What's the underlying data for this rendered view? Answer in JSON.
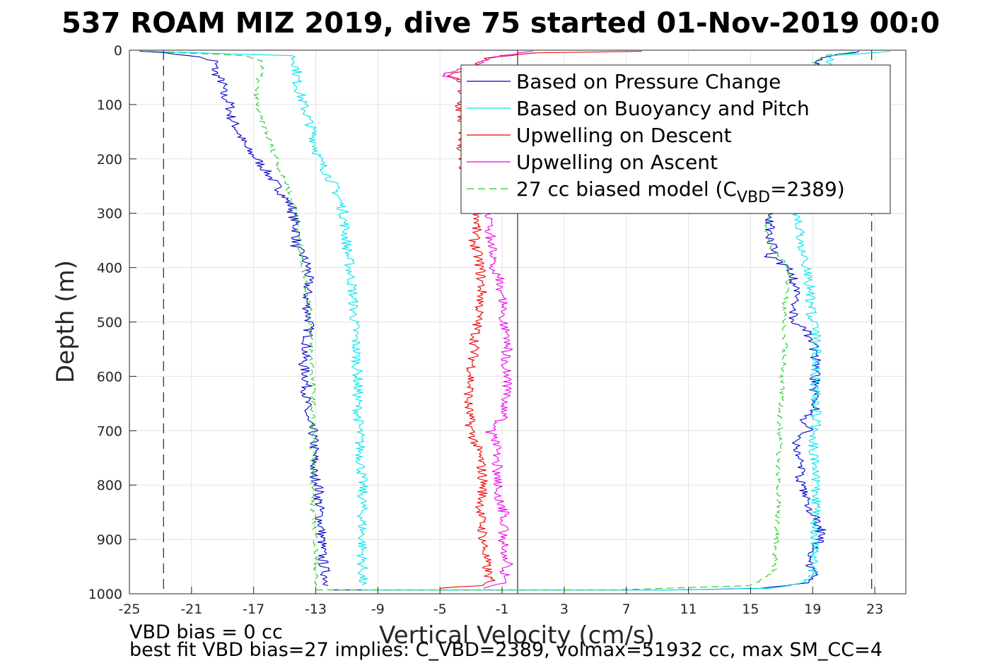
{
  "chart_data": {
    "type": "line",
    "title": "537 ROAM MIZ 2019, dive 75 started 01-Nov-2019 00:0",
    "xlabel": "Vertical Velocity (cm/s)",
    "ylabel": "Depth (m)",
    "xlim": [
      -25,
      25
    ],
    "ylim": [
      0,
      1000
    ],
    "y_reversed": true,
    "grid": true,
    "x_ticks": [
      -25,
      -21,
      -17,
      -13,
      -9,
      -5,
      -1,
      3,
      7,
      11,
      15,
      19,
      23
    ],
    "y_ticks": [
      0,
      100,
      200,
      300,
      400,
      500,
      600,
      700,
      800,
      900,
      1000
    ],
    "reference_lines": {
      "zero_velocity_x": 0,
      "dashed_limits_x": [
        -22.8,
        22.8
      ]
    },
    "legend": {
      "placement": "top-right",
      "entries": [
        {
          "label": "Based on Pressure Change",
          "color": "#0000cc",
          "style": "solid"
        },
        {
          "label": "Based on Buoyancy and Pitch",
          "color": "#00e5ee",
          "style": "solid"
        },
        {
          "label": "Upwelling on Descent",
          "color": "#ee0000",
          "style": "solid"
        },
        {
          "label": "Upwelling on Ascent",
          "color": "#ee00ee",
          "style": "solid"
        },
        {
          "label_prefix": "27 cc biased model (C",
          "label_sub": "VBD",
          "label_suffix": "=2389)",
          "color": "#22cc22",
          "style": "dashed"
        }
      ]
    },
    "series": [
      {
        "name": "Based on Pressure Change",
        "color": "#0000cc",
        "segments": [
          {
            "depth": [
              2,
              10,
              20,
              40,
              60,
              80,
              100,
              120,
              150,
              180,
              200,
              230,
              250,
              270,
              290,
              300,
              320,
              340,
              360,
              380,
              400,
              430,
              460,
              500,
              530,
              560,
              580,
              600,
              640,
              680,
              700,
              730,
              760,
              780,
              800,
              830,
              860,
              900,
              930,
              960,
              985
            ],
            "vel": [
              -24,
              -21,
              -19.5,
              -19.5,
              -19,
              -19,
              -18.5,
              -18.5,
              -18,
              -17.5,
              -16.8,
              -16,
              -15.5,
              -15,
              -14.5,
              -14.5,
              -14.3,
              -14.2,
              -14.3,
              -13.8,
              -13.5,
              -13.5,
              -13.6,
              -13.4,
              -13.5,
              -13.7,
              -13.8,
              -13.6,
              -13.6,
              -13.6,
              -13.2,
              -13.1,
              -13.1,
              -13.2,
              -12.8,
              -12.8,
              -12.7,
              -12.6,
              -12.6,
              -12.4,
              -12.2
            ]
          },
          {
            "depth": [
              993,
              993,
              990,
              980,
              970,
              960,
              940,
              900,
              880,
              860,
              840,
              820,
              800,
              780,
              760,
              740,
              720,
              700,
              680,
              660,
              640,
              620,
              600,
              580,
              560,
              540,
              520,
              500,
              480,
              460,
              440,
              420,
              400,
              380,
              370,
              360,
              340,
              320,
              300,
              200,
              100,
              50,
              20,
              10,
              2
            ],
            "vel": [
              -12,
              10,
              16,
              18.5,
              19,
              19,
              18.8,
              19.5,
              19.5,
              19.2,
              18.5,
              18.5,
              18.3,
              18.2,
              18.3,
              18,
              17.8,
              18.8,
              18.5,
              19.2,
              19.2,
              19,
              19.2,
              19.2,
              19.2,
              19,
              18.7,
              17.8,
              17.8,
              18,
              17.8,
              17.8,
              17.5,
              16.2,
              16.5,
              16.5,
              16.2,
              16.2,
              16.2,
              17.2,
              17.8,
              18.5,
              19.5,
              20.2,
              22
            ]
          }
        ]
      },
      {
        "name": "Based on Buoyancy and Pitch",
        "color": "#00e5ee",
        "segments": [
          {
            "depth": [
              2,
              10,
              30,
              60,
              100,
              150,
              200,
              230,
              250,
              280,
              300,
              330,
              360,
              400,
              450,
              500,
              550,
              600,
              650,
              700,
              750,
              800,
              850,
              900,
              950,
              985
            ],
            "vel": [
              -24,
              -14.5,
              -14.2,
              -14.2,
              -13.8,
              -13.2,
              -12.8,
              -12.2,
              -11.8,
              -11.4,
              -11.2,
              -11.1,
              -11,
              -10.8,
              -10.6,
              -10.5,
              -10.4,
              -10.3,
              -10.3,
              -10.2,
              -10.1,
              -10,
              -10,
              -10,
              -10,
              -10
            ]
          },
          {
            "depth": [
              993,
              993,
              990,
              980,
              960,
              940,
              900,
              860,
              820,
              780,
              740,
              700,
              660,
              620,
              580,
              540,
              520,
              500,
              460,
              420,
              380,
              340,
              300,
              260,
              200,
              150,
              100,
              60,
              20,
              10,
              2
            ],
            "vel": [
              -10,
              10,
              16,
              18.5,
              19,
              19,
              19.2,
              19.2,
              19.2,
              19.2,
              19,
              19.2,
              19.2,
              19.2,
              19.2,
              19.2,
              19.2,
              19,
              18.8,
              18.8,
              18.5,
              18.2,
              18,
              18.5,
              19,
              19.2,
              19.5,
              19.8,
              20,
              20.5,
              24
            ]
          }
        ]
      },
      {
        "name": "Upwelling on Descent",
        "color": "#ee0000",
        "segments": [
          {
            "depth": [
              2,
              5,
              15,
              30,
              45,
              60,
              100,
              150,
              200,
              250,
              300,
              350,
              400,
              450,
              500,
              550,
              600,
              650,
              700,
              750,
              800,
              850,
              900,
              950,
              975,
              985,
              990
            ],
            "vel": [
              8,
              1,
              -2,
              -3,
              -4.5,
              -3.5,
              -3.8,
              -3.5,
              -3.7,
              -3,
              -2.5,
              -2.8,
              -2.4,
              -2.3,
              -2.6,
              -2.8,
              -3,
              -3.2,
              -3,
              -2.4,
              -2.2,
              -2.4,
              -2.2,
              -2,
              -1.8,
              -2.5,
              -5
            ]
          }
        ]
      },
      {
        "name": "Upwelling on Ascent",
        "color": "#ee00ee",
        "segments": [
          {
            "depth": [
              990,
              975,
              960,
              940,
              900,
              860,
              820,
              790,
              760,
              720,
              700,
              670,
              630,
              600,
              570,
              540,
              510,
              480,
              450,
              420,
              400,
              380,
              350,
              320,
              300,
              250,
              200,
              150,
              100,
              60,
              45,
              30,
              15,
              5,
              2
            ],
            "vel": [
              -2,
              -0.5,
              -0.8,
              -0.6,
              -1,
              -0.8,
              -1.2,
              -1.3,
              -1.3,
              -1.4,
              -1.8,
              -0.8,
              -0.8,
              -0.6,
              -0.8,
              -0.6,
              -0.8,
              -0.9,
              -1,
              -1.2,
              -1.5,
              -1.6,
              -1.8,
              -1.7,
              -1.8,
              -1.6,
              -1.9,
              -2,
              -2.3,
              -2.8,
              -5,
              -3,
              -2,
              0,
              1
            ]
          }
        ]
      },
      {
        "name": "27 cc biased model",
        "color": "#22cc22",
        "dashed": true,
        "segments": [
          {
            "depth": [
              2,
              10,
              20,
              40,
              60,
              80,
              100,
              130,
              150,
              180,
              200,
              230,
              250,
              280,
              300,
              330,
              360,
              400,
              430,
              460,
              500,
              550,
              600,
              650,
              700,
              750,
              800,
              850,
              900,
              950,
              985
            ],
            "vel": [
              -24,
              -17.5,
              -16.5,
              -16.5,
              -16.8,
              -16.8,
              -16.8,
              -16.5,
              -16.2,
              -15.8,
              -15.5,
              -15.2,
              -14.8,
              -14.5,
              -14.2,
              -14.2,
              -14,
              -13.8,
              -13.6,
              -13.5,
              -13.3,
              -13.3,
              -13.2,
              -13.2,
              -13.2,
              -13.2,
              -13.2,
              -13.2,
              -13,
              -13,
              -13
            ]
          },
          {
            "depth": [
              993,
              993,
              985,
              960,
              920,
              880,
              840,
              800,
              760,
              720,
              680,
              640,
              600,
              560,
              520,
              480,
              440,
              400,
              360,
              320,
              300,
              250,
              200,
              150,
              100,
              60,
              20,
              10,
              2
            ],
            "vel": [
              -13,
              6,
              15,
              16.5,
              16.6,
              16.7,
              16.8,
              16.8,
              16.8,
              16.9,
              16.9,
              17,
              17,
              17.2,
              17.2,
              17.2,
              17.3,
              17.5,
              16.2,
              16,
              16.2,
              16.5,
              16.8,
              17.2,
              17.8,
              18.5,
              19.2,
              19.8,
              22
            ]
          }
        ]
      }
    ]
  },
  "notes": {
    "line1": "VBD bias = 0 cc",
    "line2": "best fit VBD bias=27 implies: C_VBD=2389, volmax=51932 cc, max SM_CC=4"
  }
}
